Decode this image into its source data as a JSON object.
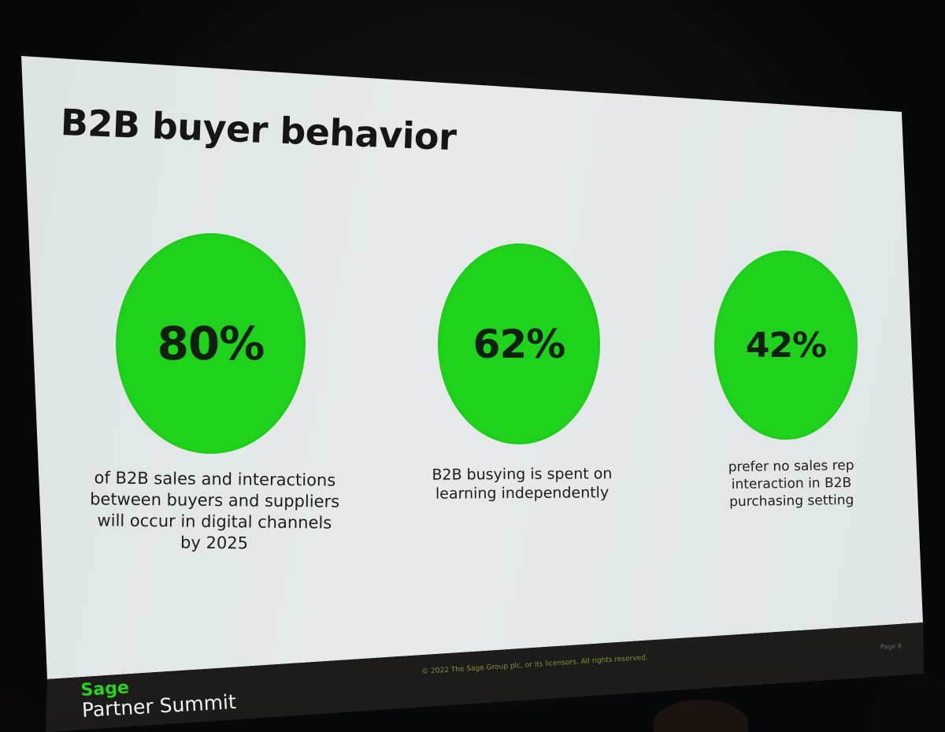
{
  "slide": {
    "title": "B2B buyer behavior",
    "stats": [
      {
        "value": "80%",
        "caption_lines": [
          "of B2B sales and interactions",
          "between buyers and suppliers",
          "will occur in digital channels",
          "by 2025"
        ]
      },
      {
        "value": "62%",
        "caption_lines": [
          "B2B busying is spent on",
          "learning independently"
        ]
      },
      {
        "value": "42%",
        "caption_lines": [
          "prefer no sales rep",
          "interaction in B2B",
          "purchasing setting"
        ]
      }
    ],
    "page_label": "Page 8",
    "copyright": "© 2022 The Sage Group plc, or its licensors. All rights reserved."
  },
  "branding": {
    "logo_text": "Sage",
    "event_name": "Partner Summit"
  },
  "colors": {
    "accent_green": "#1fd21b",
    "slide_background": "#e2e7e7",
    "title_text": "#161616"
  }
}
